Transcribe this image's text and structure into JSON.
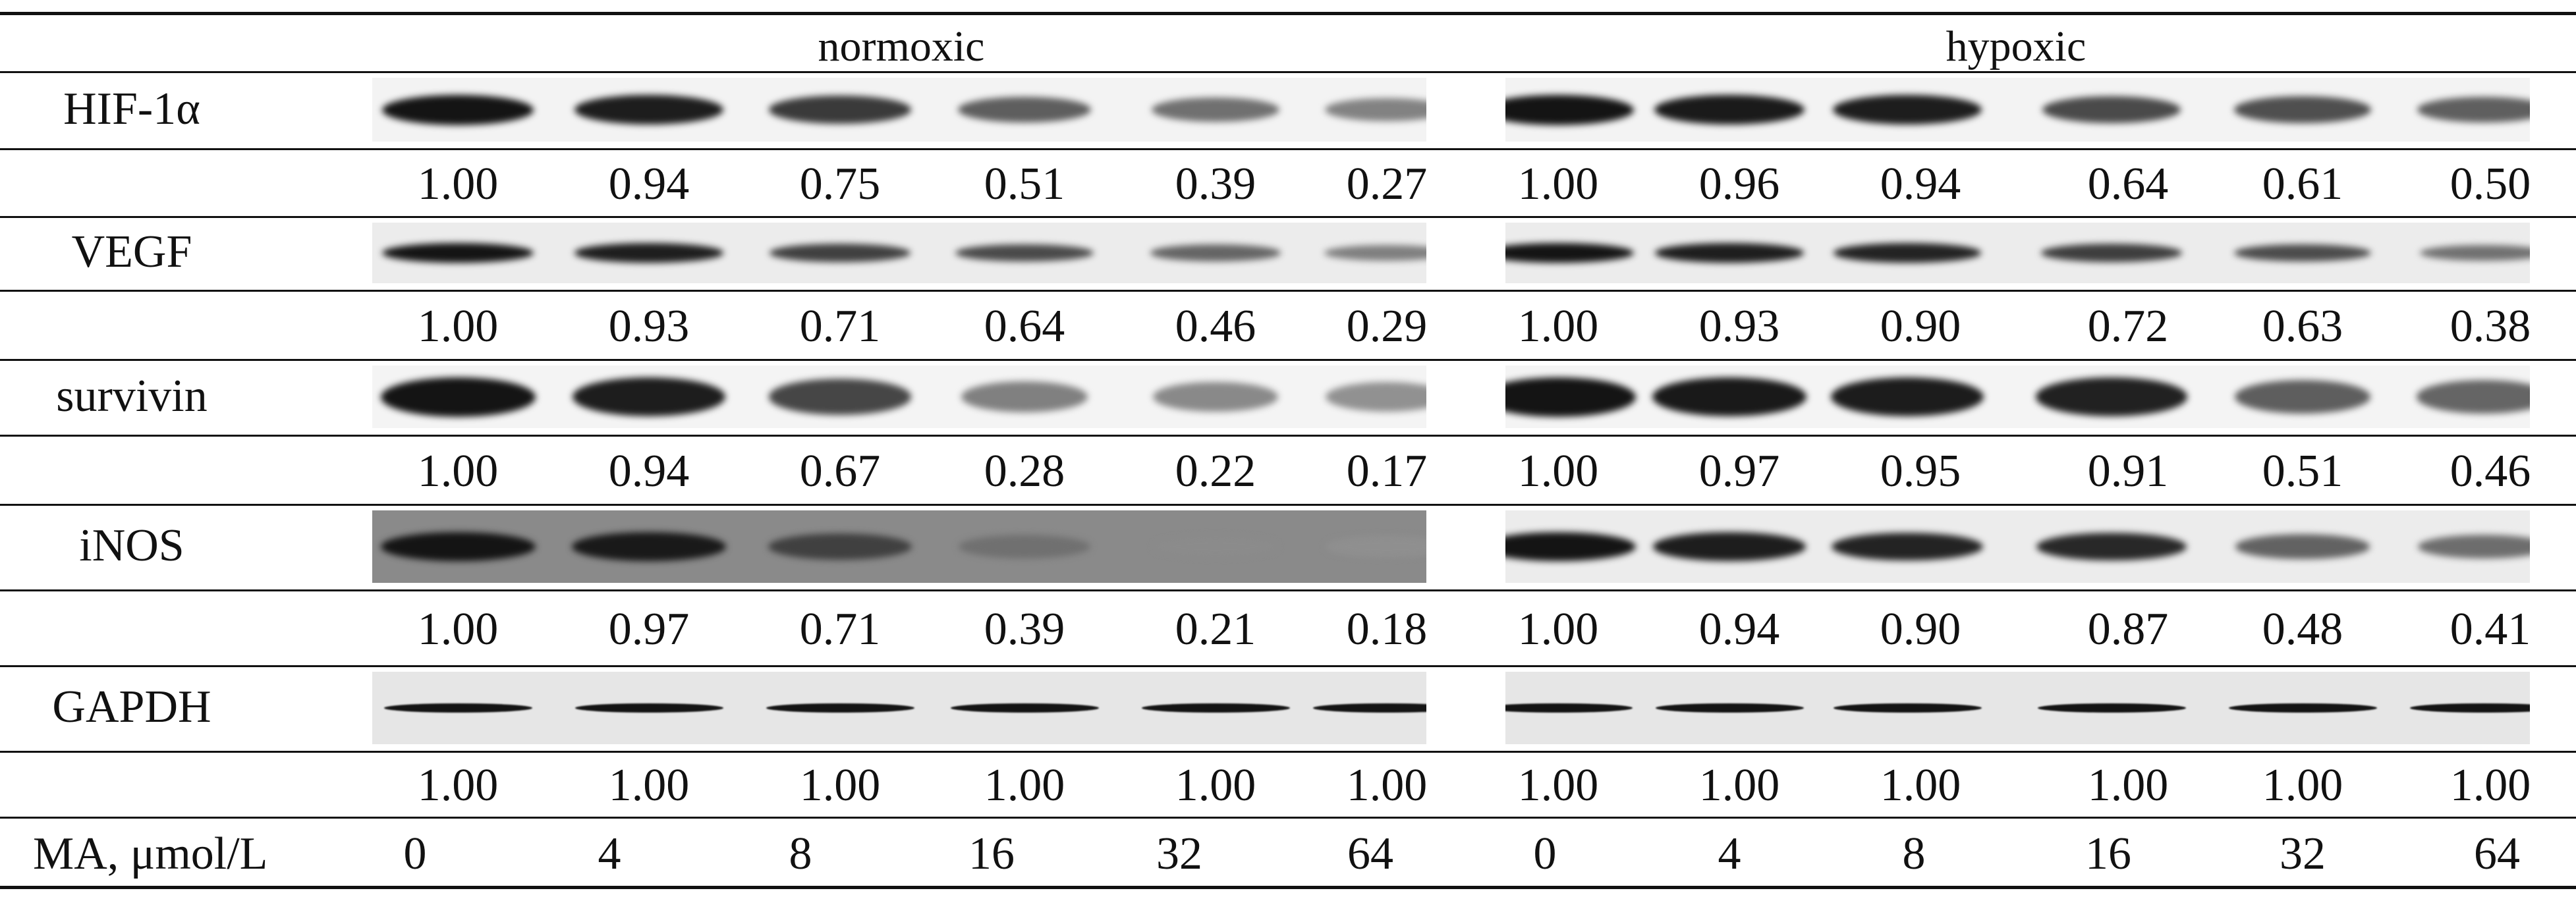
{
  "conditions": [
    "normoxic",
    "hypoxic"
  ],
  "proteins": [
    "HIF-1α",
    "VEGF",
    "survivin",
    "iNOS",
    "GAPDH"
  ],
  "band_intensity": {
    "HIF-1α": {
      "normoxic": [
        "1.00",
        "0.94",
        "0.75",
        "0.51",
        "0.39",
        "0.27"
      ],
      "hypoxic": [
        "1.00",
        "0.96",
        "0.94",
        "0.64",
        "0.61",
        "0.50"
      ]
    },
    "VEGF": {
      "normoxic": [
        "1.00",
        "0.93",
        "0.71",
        "0.64",
        "0.46",
        "0.29"
      ],
      "hypoxic": [
        "1.00",
        "0.93",
        "0.90",
        "0.72",
        "0.63",
        "0.38"
      ]
    },
    "survivin": {
      "normoxic": [
        "1.00",
        "0.94",
        "0.67",
        "0.28",
        "0.22",
        "0.17"
      ],
      "hypoxic": [
        "1.00",
        "0.97",
        "0.95",
        "0.91",
        "0.51",
        "0.46"
      ]
    },
    "iNOS": {
      "normoxic": [
        "1.00",
        "0.97",
        "0.71",
        "0.39",
        "0.21",
        "0.18"
      ],
      "hypoxic": [
        "1.00",
        "0.94",
        "0.90",
        "0.87",
        "0.48",
        "0.41"
      ]
    },
    "GAPDH": {
      "normoxic": [
        "1.00",
        "1.00",
        "1.00",
        "1.00",
        "1.00",
        "1.00"
      ],
      "hypoxic": [
        "1.00",
        "1.00",
        "1.00",
        "1.00",
        "1.00",
        "1.00"
      ]
    }
  },
  "dose_label": "MA, μmol/L",
  "doses": [
    "0",
    "4",
    "8",
    "16",
    "32",
    "64"
  ]
}
